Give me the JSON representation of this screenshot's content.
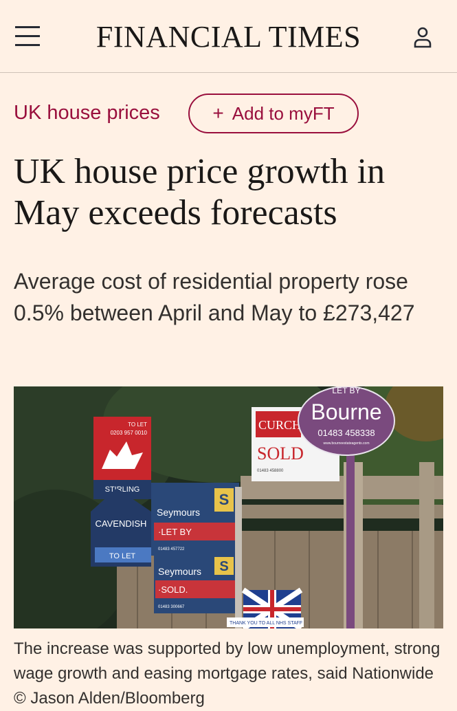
{
  "header": {
    "brand": "FINANCIAL TIMES",
    "menu_icon": "hamburger-menu-icon",
    "user_icon": "user-icon"
  },
  "topic": {
    "label": "UK house prices",
    "add_button": "Add to myFT",
    "add_icon": "plus-icon"
  },
  "article": {
    "headline": "UK house price growth in May exceeds forecasts",
    "standfirst": "Average cost of residential property rose 0.5% between April and May to £273,427",
    "caption": "The increase was supported by low unemployment, strong wage growth and easing mortgage rates, said Nationwide © Jason Alden/Bloomberg"
  },
  "photo_signs": {
    "stirling_to_let": "TO LET",
    "stirling_phone": "0203 957 0010",
    "stirling_name": "STIRLING",
    "cavendish_name": "CAVENDISH",
    "cavendish_to_let": "TO LET",
    "seymours_1_name": "Seymours",
    "seymours_1_status": "·LET BY",
    "seymours_1_phone": "01483 457722",
    "seymours_2_name": "Seymours",
    "seymours_2_status": "·SOLD.",
    "seymours_2_phone": "01483 300667",
    "curchods_name": "CURCH",
    "curchods_status": "SOLD",
    "curchods_phone": "01483 458800",
    "bourne_top": "LET BY",
    "bourne_name": "Bourne",
    "bourne_phone": "01483 458338",
    "bourne_web": "www.bourneestateagents.com",
    "nhs_text": "THANK YOU TO ALL NHS STAFF"
  },
  "colors": {
    "background": "#fff1e5",
    "accent": "#990f3d",
    "text": "#33302e",
    "headline": "#1a1817"
  }
}
